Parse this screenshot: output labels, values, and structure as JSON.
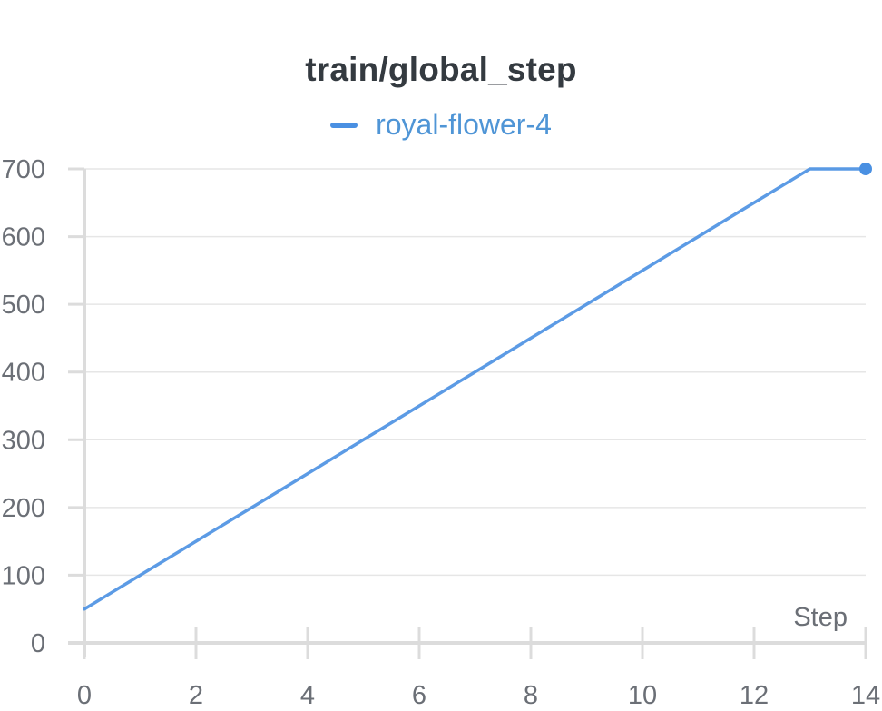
{
  "chart_data": {
    "type": "line",
    "title": "train/global_step",
    "xlabel": "Step",
    "ylabel": "",
    "xlim": [
      0,
      14
    ],
    "ylim": [
      0,
      700
    ],
    "x_ticks": [
      0,
      2,
      4,
      6,
      8,
      10,
      12,
      14
    ],
    "y_ticks": [
      0,
      100,
      200,
      300,
      400,
      500,
      600,
      700
    ],
    "grid": true,
    "legend": "top-center",
    "series": [
      {
        "name": "royal-flower-4",
        "color": "#4a90e2",
        "x": [
          0,
          1,
          2,
          3,
          4,
          5,
          6,
          7,
          8,
          9,
          10,
          11,
          12,
          13,
          14
        ],
        "y": [
          50,
          100,
          150,
          200,
          250,
          300,
          350,
          400,
          450,
          500,
          550,
          600,
          650,
          700,
          700
        ]
      }
    ]
  }
}
